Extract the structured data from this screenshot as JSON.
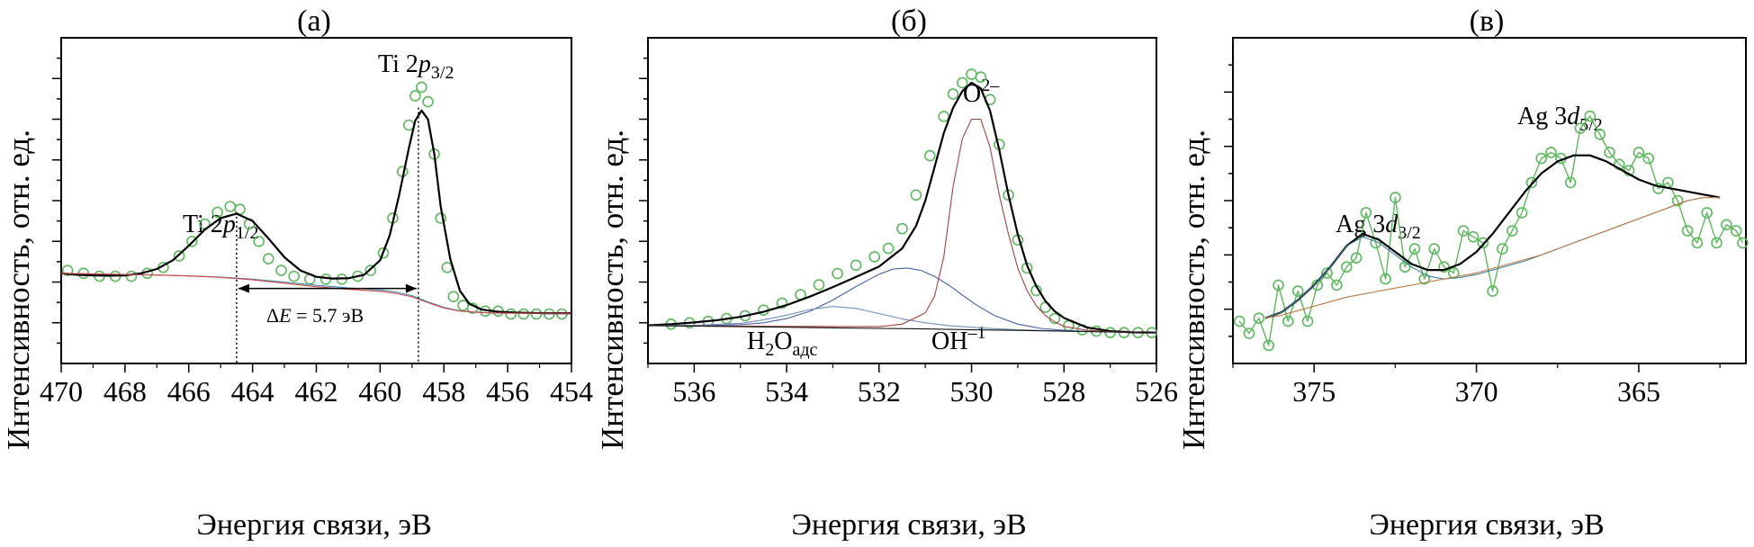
{
  "figure": {
    "panels": [
      {
        "id": "a",
        "title": "(а)",
        "xlabel": "Энергия связи, эВ",
        "ylabel": "Интенсивность, отн. ед."
      },
      {
        "id": "b",
        "title": "(б)",
        "xlabel": "Энергия связи, эВ",
        "ylabel": "Интенсивность, отн. ед."
      },
      {
        "id": "c",
        "title": "(в)",
        "xlabel": "Энергия связи, эВ",
        "ylabel": "Интенсивность, отн. ед."
      }
    ]
  },
  "chart_data": [
    {
      "type": "scatter",
      "title": "(а)",
      "xlabel": "Энергия связи, эВ",
      "ylabel": "Интенсивность, отн. ед.",
      "xlim": [
        470,
        454
      ],
      "xticks": [
        470,
        468,
        466,
        464,
        462,
        460,
        458,
        456,
        454
      ],
      "ylim": [
        0,
        100
      ],
      "y_ticks_labeled": false,
      "annotations": [
        {
          "text_parts": [
            "Ti 2",
            "p",
            "1/2"
          ],
          "x": 464.6,
          "y": 52
        },
        {
          "text_parts": [
            "Ti 2",
            "p",
            "3/2"
          ],
          "x": 459.0,
          "y": 100
        },
        {
          "text_parts": [
            "Δ",
            "E",
            " = 5.7 эВ"
          ],
          "x": 461.8,
          "y": 41
        }
      ],
      "markers": {
        "delta_e": [
          464.5,
          458.8
        ]
      },
      "series": [
        {
          "name": "",
          "style": "circles",
          "color": "#5cb85c",
          "x": [
            469.8,
            469.3,
            468.8,
            468.3,
            467.8,
            467.3,
            466.8,
            466.3,
            465.9,
            465.5,
            465.1,
            464.7,
            464.4,
            464.1,
            463.8,
            463.5,
            463.1,
            462.7,
            462.2,
            461.7,
            461.2,
            460.7,
            460.3,
            459.9,
            459.6,
            459.3,
            459.1,
            458.9,
            458.7,
            458.5,
            458.3,
            458.1,
            457.9,
            457.7,
            457.4,
            457.1,
            456.7,
            456.3,
            455.9,
            455.5,
            455.1,
            454.7,
            454.3
          ],
          "y": [
            32,
            31,
            30,
            30,
            30,
            31,
            33,
            37,
            42,
            48,
            52,
            54,
            53,
            48,
            42,
            36,
            32,
            30,
            29,
            29,
            29,
            30,
            32,
            38,
            50,
            66,
            82,
            92,
            95,
            90,
            72,
            50,
            33,
            23,
            20,
            19,
            18,
            18,
            17,
            17,
            17,
            17,
            17
          ]
        },
        {
          "name": "",
          "style": "line",
          "color": "#000000",
          "x": [
            470,
            469.5,
            469,
            468.5,
            468,
            467.5,
            467,
            466.5,
            466,
            465.5,
            465,
            464.5,
            464,
            463.5,
            463,
            462.5,
            462,
            461.5,
            461,
            460.5,
            460,
            459.7,
            459.4,
            459.1,
            458.9,
            458.7,
            458.5,
            458.3,
            458.1,
            457.8,
            457.5,
            457.2,
            456.8,
            456.3,
            455.8,
            455.3,
            454.8,
            454.3,
            454
          ],
          "y": [
            31,
            30.5,
            30.3,
            30.2,
            30.3,
            31,
            32.5,
            35.5,
            40.5,
            46,
            50,
            51.5,
            49,
            43,
            36.5,
            32,
            29.8,
            29.2,
            29.3,
            30.5,
            35.5,
            44,
            58,
            74,
            83.5,
            87,
            84,
            72,
            54,
            36,
            25,
            20.5,
            18.5,
            17.8,
            17.5,
            17.4,
            17.3,
            17.3,
            17.3
          ]
        },
        {
          "name": "",
          "style": "line",
          "color": "#3a8fb0",
          "x": [
            470,
            469,
            468,
            467,
            466,
            465,
            464,
            463,
            462,
            461,
            460,
            459.5,
            459,
            458.5,
            458,
            457.5,
            457,
            456.5,
            456,
            455,
            454
          ],
          "y": [
            31,
            30.8,
            30.6,
            30.4,
            30.1,
            29.7,
            29,
            28,
            26.9,
            26,
            25.3,
            24.6,
            23.3,
            21.2,
            19.3,
            18.1,
            17.6,
            17.4,
            17.3,
            17.3,
            17.3
          ]
        },
        {
          "name": "",
          "style": "line",
          "color": "#cc4444",
          "x": [
            470,
            469,
            468,
            467,
            466,
            465,
            464,
            463,
            462,
            461,
            460,
            459.5,
            459,
            458.5,
            458,
            457.5,
            457,
            456.5,
            456,
            455,
            454
          ],
          "y": [
            31,
            30.8,
            30.6,
            30.4,
            30.1,
            29.6,
            28.8,
            27.6,
            26.4,
            25.5,
            24.8,
            24.1,
            22.9,
            20.9,
            19.1,
            18,
            17.6,
            17.4,
            17.3,
            17.3,
            17.3
          ]
        }
      ]
    },
    {
      "type": "scatter",
      "title": "(б)",
      "xlabel": "Энергия связи, эВ",
      "ylabel": "Интенсивность, отн. ед.",
      "xlim": [
        537,
        526
      ],
      "xticks": [
        536,
        534,
        532,
        530,
        528,
        526
      ],
      "ylim": [
        0,
        100
      ],
      "y_ticks_labeled": false,
      "annotations": [
        {
          "text_parts": [
            "O",
            "2–"
          ],
          "x": 529.7,
          "y": 97
        },
        {
          "text_parts": [
            "OH",
            "–1"
          ],
          "x": 530.8,
          "y": 29
        },
        {
          "text_parts": [
            "H",
            "2",
            "O",
            "адс"
          ],
          "x": 533.5,
          "y": 29
        }
      ],
      "series": [
        {
          "name": "",
          "style": "circles",
          "color": "#5cb85c",
          "x": [
            536.5,
            536.1,
            535.7,
            535.3,
            534.9,
            534.5,
            534.1,
            533.7,
            533.3,
            532.9,
            532.5,
            532.1,
            531.8,
            531.5,
            531.2,
            530.9,
            530.6,
            530.4,
            530.2,
            530.0,
            529.8,
            529.6,
            529.4,
            529.2,
            529.0,
            528.8,
            528.6,
            528.4,
            528.2,
            527.9,
            527.6,
            527.3,
            527.0,
            526.7,
            526.4,
            526.1
          ],
          "y": [
            6,
            6.5,
            7,
            8,
            9,
            11,
            13.5,
            16.5,
            20,
            24,
            27,
            30,
            33,
            40,
            52,
            66,
            80,
            88,
            92,
            95,
            94,
            86,
            70,
            52,
            36,
            26,
            18,
            12,
            8,
            5.5,
            4,
            3.5,
            3,
            3,
            3,
            3
          ]
        },
        {
          "name": "",
          "style": "line",
          "color": "#000000",
          "x": [
            537,
            536.5,
            536,
            535.5,
            535,
            534.5,
            534,
            533.5,
            533,
            532.5,
            532,
            531.5,
            531.2,
            531,
            530.8,
            530.6,
            530.4,
            530.2,
            530,
            529.8,
            529.6,
            529.4,
            529.2,
            529,
            528.8,
            528.6,
            528.4,
            528.2,
            528,
            527.5,
            527,
            526.5,
            526
          ],
          "y": [
            5.6,
            6,
            6.6,
            7.4,
            8.6,
            10.4,
            12.8,
            15.8,
            19.2,
            22.8,
            26.5,
            33,
            41,
            50,
            62,
            74,
            83,
            89,
            92,
            90,
            82,
            68,
            52,
            38,
            27,
            19.5,
            14.2,
            10.6,
            8.2,
            4.8,
            3.5,
            3.1,
            3
          ]
        },
        {
          "name": "",
          "style": "line",
          "color": "#4a5fa8",
          "x": [
            537,
            536,
            535,
            534.5,
            534,
            533.5,
            533,
            532.5,
            532,
            531.7,
            531.4,
            531.1,
            530.8,
            530.5,
            530.2,
            529.9,
            529.5,
            529,
            528.5,
            528,
            527.5,
            527,
            526
          ],
          "y": [
            5.5,
            5.5,
            5.8,
            6.5,
            8,
            10.6,
            14.6,
            19.4,
            23.8,
            25.6,
            26,
            25.2,
            23,
            20,
            16.4,
            12.9,
            9,
            6,
            4.5,
            3.8,
            3.4,
            3.2,
            3
          ]
        },
        {
          "name": "",
          "style": "line",
          "color": "#6d8fc0",
          "x": [
            537,
            536,
            535,
            534.5,
            534,
            533.5,
            533,
            532.5,
            532,
            531.5,
            531,
            530.5,
            530,
            529.5,
            529,
            528,
            527,
            526
          ],
          "y": [
            5.5,
            5.6,
            6.3,
            7.5,
            9.2,
            11.2,
            12.3,
            11.6,
            9.8,
            7.9,
            6.5,
            5.5,
            4.9,
            4.4,
            4,
            3.5,
            3.2,
            3
          ]
        },
        {
          "name": "",
          "style": "line",
          "color": "#a04040",
          "x": [
            537,
            534,
            532,
            531.5,
            531,
            530.8,
            530.6,
            530.4,
            530.2,
            530,
            529.8,
            529.6,
            529.4,
            529.2,
            529,
            528.8,
            528.6,
            528.4,
            528.2,
            528,
            527.5,
            527,
            526
          ],
          "y": [
            5.5,
            5.2,
            5.1,
            6,
            10,
            16,
            30,
            55,
            72,
            79,
            79,
            69,
            52,
            38,
            26,
            18,
            12.5,
            9,
            6.8,
            5.2,
            3.8,
            3.3,
            3
          ]
        },
        {
          "name": "",
          "style": "line",
          "color": "#111111",
          "x": [
            537,
            536,
            535,
            534,
            533,
            532,
            531,
            530,
            529,
            528,
            527,
            526
          ],
          "y": [
            5.5,
            5.3,
            5.1,
            4.9,
            4.7,
            4.5,
            4.3,
            4.0,
            3.8,
            3.5,
            3.2,
            3.0
          ]
        }
      ]
    },
    {
      "type": "line",
      "title": "(в)",
      "xlabel": "Энергия связи, эВ",
      "ylabel": "Интенсивность, отн. ед.",
      "xlim": [
        377.5,
        361.7
      ],
      "xticks": [
        375,
        370,
        365
      ],
      "ylim": [
        0,
        100
      ],
      "y_ticks_labeled": false,
      "annotations": [
        {
          "text_parts": [
            "Ag 3",
            "d",
            "3/2"
          ],
          "x": 373.2,
          "y": 56
        },
        {
          "text_parts": [
            "Ag 3",
            "d",
            "5/2"
          ],
          "x": 367.8,
          "y": 90
        }
      ],
      "series": [
        {
          "name": "",
          "style": "line+circles",
          "color": "#5cb85c",
          "x": [
            377.3,
            377.0,
            376.7,
            376.4,
            376.1,
            375.8,
            375.5,
            375.2,
            374.9,
            374.6,
            374.3,
            374.0,
            373.7,
            373.4,
            373.1,
            372.8,
            372.5,
            372.2,
            371.9,
            371.6,
            371.3,
            371.0,
            370.7,
            370.4,
            370.1,
            369.8,
            369.5,
            369.2,
            368.9,
            368.6,
            368.3,
            368.0,
            367.7,
            367.4,
            367.1,
            366.8,
            366.5,
            366.2,
            365.9,
            365.6,
            365.3,
            365.0,
            364.7,
            364.4,
            364.1,
            363.8,
            363.5,
            363.2,
            362.9,
            362.6,
            362.3,
            362.0,
            361.8
          ],
          "y": [
            14,
            10,
            15,
            6,
            26,
            14,
            24,
            14,
            26,
            30,
            26,
            32,
            35,
            50,
            40,
            28,
            55,
            32,
            38,
            28,
            38,
            32,
            30,
            44,
            42,
            40,
            24,
            38,
            44,
            50,
            60,
            68,
            70,
            68,
            60,
            78,
            82,
            76,
            70,
            66,
            64,
            70,
            68,
            58,
            60,
            54,
            44,
            40,
            50,
            40,
            46,
            44,
            40
          ]
        },
        {
          "name": "",
          "style": "line",
          "color": "#000000",
          "x": [
            376.5,
            376,
            375.5,
            375,
            374.5,
            374,
            373.5,
            373,
            372.5,
            372,
            371.5,
            371,
            370.5,
            370,
            369.5,
            369,
            368.5,
            368,
            367.5,
            367,
            366.5,
            366,
            365.5,
            365,
            364.5,
            364,
            363.5,
            363,
            362.5
          ],
          "y": [
            15,
            17,
            21,
            26,
            32,
            39,
            43,
            41,
            37,
            33,
            31,
            31,
            33,
            37,
            43,
            50,
            57,
            63,
            67,
            69,
            69,
            67,
            64,
            61,
            59,
            58,
            57,
            56,
            55
          ]
        },
        {
          "name": "",
          "style": "line",
          "color": "#3a7fa0",
          "x": [
            376.5,
            376,
            375.5,
            375,
            374.5,
            374,
            373.5,
            373,
            372.5,
            372,
            371.5,
            371,
            370.5,
            370,
            369.5,
            369,
            368.5,
            368,
            367.5,
            367,
            366.5,
            366,
            365.5,
            365,
            364.5,
            364,
            363.5,
            363,
            362.5
          ],
          "y": [
            15,
            17,
            21,
            26,
            32,
            39,
            42,
            40,
            36,
            32,
            29,
            28,
            28.5,
            29.5,
            31,
            32.5,
            34,
            36,
            38,
            40,
            42,
            44,
            46,
            48,
            50,
            52,
            54,
            55,
            55
          ]
        },
        {
          "name": "",
          "style": "line",
          "color": "#c07a44",
          "x": [
            376.5,
            376,
            375.5,
            375,
            374.5,
            374,
            373.5,
            373,
            372.5,
            372,
            371.5,
            371,
            370.5,
            370,
            369.5,
            369,
            368.5,
            368,
            367.5,
            367,
            366.5,
            366,
            365.5,
            365,
            364.5,
            364,
            363.5,
            363,
            362.5
          ],
          "y": [
            15,
            16,
            17.5,
            19,
            20.5,
            22,
            23,
            24,
            25,
            26,
            27,
            28,
            29,
            30,
            31.5,
            33,
            34.5,
            36,
            38,
            40,
            42,
            44,
            46,
            48,
            50,
            52,
            54,
            55,
            55
          ]
        }
      ]
    }
  ]
}
